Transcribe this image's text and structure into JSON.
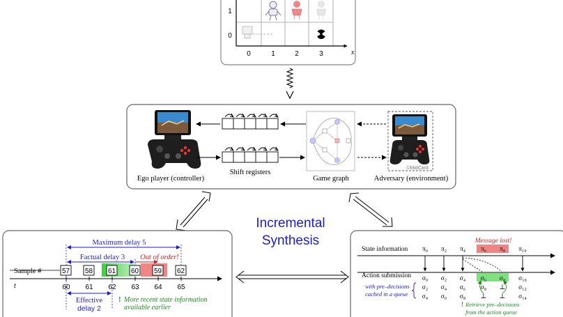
{
  "grid": {
    "y_ticks": [
      "1",
      "0"
    ],
    "x_ticks": [
      "0",
      "1",
      "2",
      "3"
    ],
    "x_axis_label": "x"
  },
  "game_panel": {
    "ego_label": "Ego player (controller)",
    "shift_label": "Shift registers",
    "graph_label": "Game graph",
    "adversary_label": "Adversary (environment)",
    "watermark": "©MidCard"
  },
  "title": {
    "line1": "Incremental",
    "line2": "Synthesis"
  },
  "delay_panel": {
    "max_delay": "Maximum delay 5",
    "factual_delay": "Factual delay 3",
    "out_of_order": "Out of order!",
    "sample_label": "Sample #",
    "t_label": "t",
    "samples": [
      "57",
      "58",
      "61",
      "60",
      "59",
      "62"
    ],
    "ticks": [
      "60",
      "61",
      "62",
      "63",
      "64",
      "65"
    ],
    "effective_line1": "Effective",
    "effective_line2": "delay 2",
    "recent_mark": "!",
    "recent_line1": "More recent state information",
    "recent_line2": "available earlier"
  },
  "queue_panel": {
    "message_lost": "Message lost!",
    "state_label": "State information",
    "action_label": "Action submission",
    "cached_line1": "with pre–decisions",
    "cached_line2": "cached in a queue",
    "retrieve_mark": "!",
    "retrieve_line1": "Retrieve pre–decisions",
    "retrieve_line2": "from the action queue",
    "pi": [
      "π₀",
      "π₂",
      "π₄",
      "π₆",
      "π₈",
      "π₁₀"
    ],
    "sigma_row1": [
      "σ₀",
      "σ₂",
      "σ₄",
      "σ₆",
      "σ₈",
      "σ₁₀"
    ],
    "sigma_row2": [
      "σ₂",
      "σ₄",
      "σ₆",
      "σ₈",
      "⊥",
      "σ₁₂"
    ],
    "sigma_row3": [
      "σ₄",
      "σ₆",
      "σ₈",
      "⊥",
      "⊥",
      "σ₁₄"
    ]
  }
}
